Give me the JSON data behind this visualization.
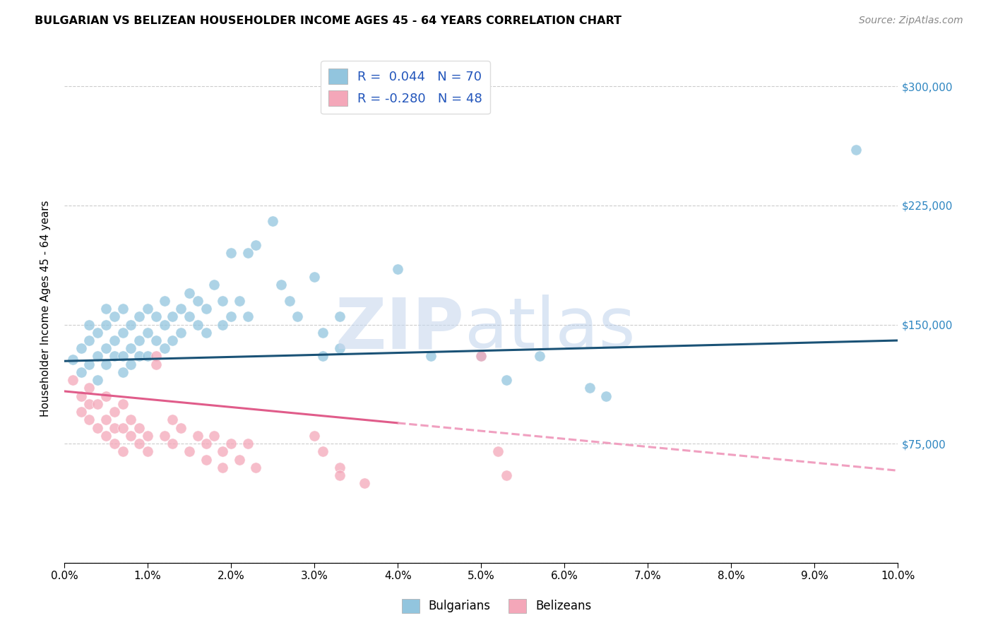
{
  "title": "BULGARIAN VS BELIZEAN HOUSEHOLDER INCOME AGES 45 - 64 YEARS CORRELATION CHART",
  "source": "Source: ZipAtlas.com",
  "ylabel": "Householder Income Ages 45 - 64 years",
  "yticks": [
    0,
    75000,
    150000,
    225000,
    300000
  ],
  "blue_color": "#92c5de",
  "pink_color": "#f4a7b9",
  "blue_line_color": "#1a5276",
  "pink_line_color": "#e05c8a",
  "pink_line_dashed_color": "#f0a0c0",
  "legend_blue_R": "0.044",
  "legend_blue_N": "70",
  "legend_pink_R": "-0.280",
  "legend_pink_N": "48",
  "blue_scatter": [
    [
      0.001,
      128000
    ],
    [
      0.002,
      135000
    ],
    [
      0.002,
      120000
    ],
    [
      0.003,
      140000
    ],
    [
      0.003,
      125000
    ],
    [
      0.003,
      150000
    ],
    [
      0.004,
      130000
    ],
    [
      0.004,
      145000
    ],
    [
      0.004,
      115000
    ],
    [
      0.005,
      135000
    ],
    [
      0.005,
      150000
    ],
    [
      0.005,
      125000
    ],
    [
      0.005,
      160000
    ],
    [
      0.006,
      140000
    ],
    [
      0.006,
      130000
    ],
    [
      0.006,
      155000
    ],
    [
      0.007,
      145000
    ],
    [
      0.007,
      130000
    ],
    [
      0.007,
      160000
    ],
    [
      0.007,
      120000
    ],
    [
      0.008,
      150000
    ],
    [
      0.008,
      135000
    ],
    [
      0.008,
      125000
    ],
    [
      0.009,
      155000
    ],
    [
      0.009,
      140000
    ],
    [
      0.009,
      130000
    ],
    [
      0.01,
      160000
    ],
    [
      0.01,
      145000
    ],
    [
      0.01,
      130000
    ],
    [
      0.011,
      155000
    ],
    [
      0.011,
      140000
    ],
    [
      0.012,
      165000
    ],
    [
      0.012,
      150000
    ],
    [
      0.012,
      135000
    ],
    [
      0.013,
      155000
    ],
    [
      0.013,
      140000
    ],
    [
      0.014,
      160000
    ],
    [
      0.014,
      145000
    ],
    [
      0.015,
      170000
    ],
    [
      0.015,
      155000
    ],
    [
      0.016,
      165000
    ],
    [
      0.016,
      150000
    ],
    [
      0.017,
      160000
    ],
    [
      0.017,
      145000
    ],
    [
      0.018,
      175000
    ],
    [
      0.019,
      165000
    ],
    [
      0.019,
      150000
    ],
    [
      0.02,
      155000
    ],
    [
      0.02,
      195000
    ],
    [
      0.021,
      165000
    ],
    [
      0.022,
      155000
    ],
    [
      0.022,
      195000
    ],
    [
      0.023,
      200000
    ],
    [
      0.025,
      215000
    ],
    [
      0.026,
      175000
    ],
    [
      0.027,
      165000
    ],
    [
      0.028,
      155000
    ],
    [
      0.03,
      180000
    ],
    [
      0.031,
      130000
    ],
    [
      0.031,
      145000
    ],
    [
      0.033,
      135000
    ],
    [
      0.033,
      155000
    ],
    [
      0.04,
      185000
    ],
    [
      0.044,
      130000
    ],
    [
      0.05,
      130000
    ],
    [
      0.053,
      115000
    ],
    [
      0.057,
      130000
    ],
    [
      0.063,
      110000
    ],
    [
      0.065,
      105000
    ],
    [
      0.095,
      260000
    ]
  ],
  "pink_scatter": [
    [
      0.001,
      115000
    ],
    [
      0.002,
      105000
    ],
    [
      0.002,
      95000
    ],
    [
      0.003,
      110000
    ],
    [
      0.003,
      100000
    ],
    [
      0.003,
      90000
    ],
    [
      0.004,
      100000
    ],
    [
      0.004,
      85000
    ],
    [
      0.005,
      105000
    ],
    [
      0.005,
      90000
    ],
    [
      0.005,
      80000
    ],
    [
      0.006,
      95000
    ],
    [
      0.006,
      85000
    ],
    [
      0.006,
      75000
    ],
    [
      0.007,
      100000
    ],
    [
      0.007,
      85000
    ],
    [
      0.007,
      70000
    ],
    [
      0.008,
      90000
    ],
    [
      0.008,
      80000
    ],
    [
      0.009,
      85000
    ],
    [
      0.009,
      75000
    ],
    [
      0.01,
      80000
    ],
    [
      0.01,
      70000
    ],
    [
      0.011,
      130000
    ],
    [
      0.011,
      125000
    ],
    [
      0.012,
      80000
    ],
    [
      0.013,
      90000
    ],
    [
      0.013,
      75000
    ],
    [
      0.014,
      85000
    ],
    [
      0.015,
      70000
    ],
    [
      0.016,
      80000
    ],
    [
      0.017,
      75000
    ],
    [
      0.017,
      65000
    ],
    [
      0.018,
      80000
    ],
    [
      0.019,
      70000
    ],
    [
      0.019,
      60000
    ],
    [
      0.02,
      75000
    ],
    [
      0.021,
      65000
    ],
    [
      0.022,
      75000
    ],
    [
      0.023,
      60000
    ],
    [
      0.03,
      80000
    ],
    [
      0.031,
      70000
    ],
    [
      0.033,
      60000
    ],
    [
      0.033,
      55000
    ],
    [
      0.036,
      50000
    ],
    [
      0.05,
      130000
    ],
    [
      0.052,
      70000
    ],
    [
      0.053,
      55000
    ]
  ],
  "blue_line": [
    [
      0.0,
      127000
    ],
    [
      0.1,
      140000
    ]
  ],
  "pink_line_solid": [
    [
      0.0,
      108000
    ],
    [
      0.04,
      88000
    ]
  ],
  "pink_line_dashed": [
    [
      0.04,
      88000
    ],
    [
      0.1,
      58000
    ]
  ],
  "xlim": [
    0.0,
    0.1
  ],
  "ylim": [
    0,
    320000
  ],
  "figsize": [
    14.06,
    8.92
  ],
  "dpi": 100
}
